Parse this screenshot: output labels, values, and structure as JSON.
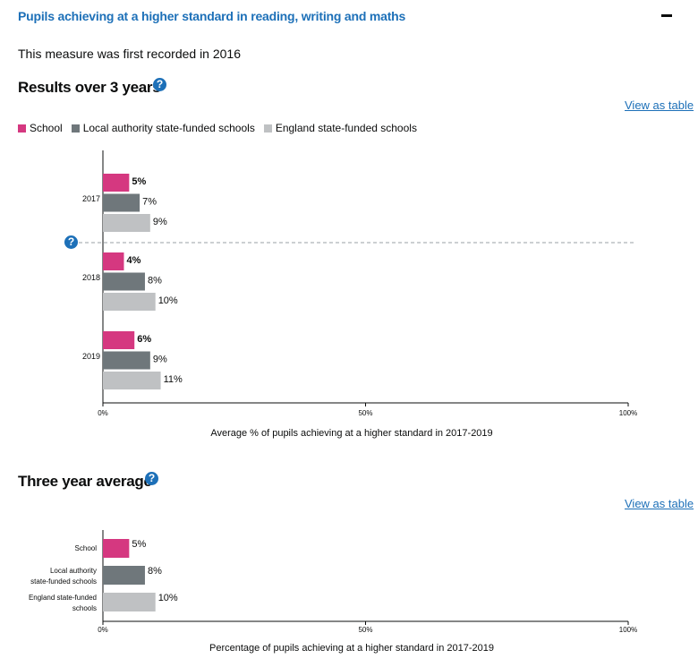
{
  "section": {
    "title": "Pupils achieving at a higher standard in reading, writing and maths",
    "first_recorded": "This measure was first recorded in 2016"
  },
  "results": {
    "heading": "Results over 3 years",
    "view_table": "View as table",
    "help_icon": "question-icon"
  },
  "average": {
    "heading": "Three year average",
    "view_table": "View as table",
    "help_icon": "question-icon"
  },
  "colors": {
    "school": "#d53880",
    "local_authority": "#6f777b",
    "england": "#bfc1c3",
    "link": "#1d70b8"
  },
  "legend": [
    "School",
    "Local authority state-funded schools",
    "England state-funded schools"
  ],
  "chart_data": [
    {
      "type": "bar",
      "orientation": "horizontal",
      "categories": [
        "2017",
        "2018",
        "2019"
      ],
      "series": [
        {
          "name": "School",
          "values": [
            5,
            4,
            6
          ],
          "labels": [
            "5%",
            "4%",
            "6%"
          ]
        },
        {
          "name": "Local authority state-funded schools",
          "values": [
            7,
            8,
            9
          ],
          "labels": [
            "7%",
            "8%",
            "9%"
          ]
        },
        {
          "name": "England state-funded schools",
          "values": [
            9,
            10,
            11
          ],
          "labels": [
            "9%",
            "10%",
            "11%"
          ]
        }
      ],
      "xlim": [
        0,
        100
      ],
      "xticks": [
        "0%",
        "50%",
        "100%"
      ],
      "xlabel": "Average % of pupils achieving at a higher standard in 2017-2019",
      "legend_position": "top-left",
      "grid": false
    },
    {
      "type": "bar",
      "orientation": "horizontal",
      "categories": [
        [
          "School"
        ],
        [
          "Local authority",
          "state-funded schools"
        ],
        [
          "England state-funded",
          "schools"
        ]
      ],
      "values": [
        5,
        8,
        10
      ],
      "labels": [
        "5%",
        "8%",
        "10%"
      ],
      "xlim": [
        0,
        100
      ],
      "xticks": [
        "0%",
        "50%",
        "100%"
      ],
      "xlabel": "Percentage of pupils achieving at a higher standard in 2017-2019",
      "grid": false
    }
  ]
}
